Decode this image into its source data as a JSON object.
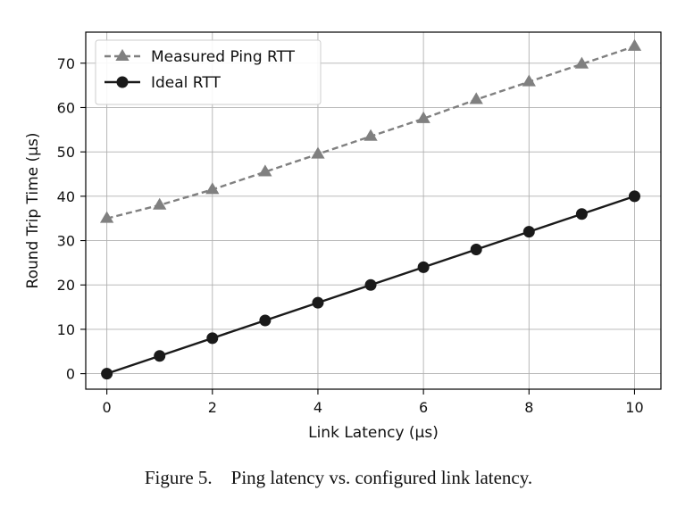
{
  "caption": "Figure 5.    Ping latency vs. configured link latency.",
  "chart_data": {
    "type": "line",
    "title": "",
    "xlabel": "Link Latency (μs)",
    "ylabel": "Round Trip Time (μs)",
    "xlim": [
      -0.4,
      10.5
    ],
    "ylim": [
      -3.5,
      77
    ],
    "xticks": [
      0,
      2,
      4,
      6,
      8,
      10
    ],
    "yticks": [
      0,
      10,
      20,
      30,
      40,
      50,
      60,
      70
    ],
    "grid": true,
    "legend_position": "top-left",
    "x": [
      0,
      1,
      2,
      3,
      4,
      5,
      6,
      7,
      8,
      9,
      10
    ],
    "series": [
      {
        "name": "Measured Ping RTT",
        "values": [
          35,
          38,
          41.5,
          45.5,
          49.5,
          53.5,
          57.5,
          61.8,
          65.8,
          69.8,
          73.8
        ],
        "color": "#808080",
        "line_style": "dashed",
        "marker": "triangle"
      },
      {
        "name": "Ideal RTT",
        "values": [
          0,
          4,
          8,
          12,
          16,
          20,
          24,
          28,
          32,
          36,
          40
        ],
        "color": "#1a1a1a",
        "line_style": "solid",
        "marker": "circle"
      }
    ]
  }
}
